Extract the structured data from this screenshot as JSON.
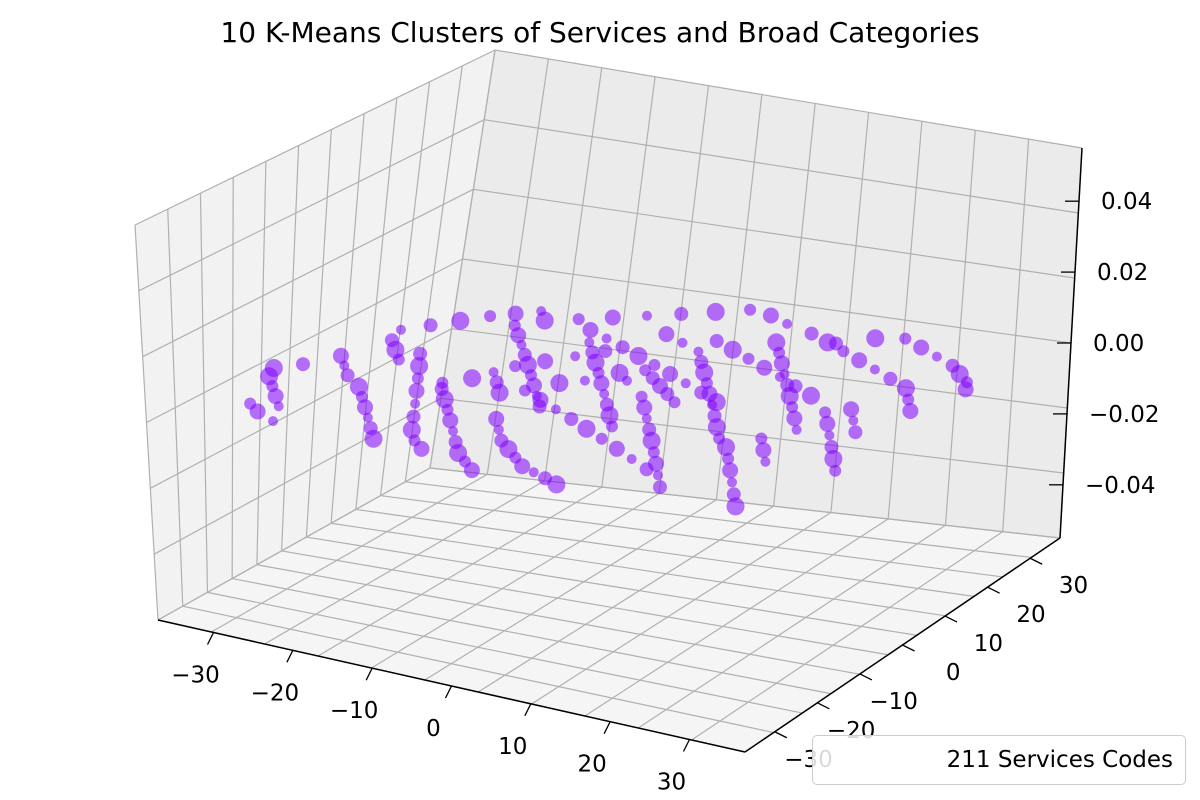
{
  "title": "10 K-Means Clusters of Services and Broad Categories",
  "legend": {
    "label": "211 Services Codes"
  },
  "chart_data": {
    "type": "scatter",
    "projection": "3d",
    "title": "10 K-Means Clusters of Services and Broad Categories",
    "x_ticks": [
      "−30",
      "−20",
      "−10",
      "0",
      "10",
      "20",
      "30"
    ],
    "y_ticks": [
      "−30",
      "−20",
      "−10",
      "0",
      "10",
      "20",
      "30"
    ],
    "z_ticks": [
      "−0.04",
      "−0.02",
      "0.00",
      "0.02",
      "0.04"
    ],
    "xlim": [
      -37,
      37
    ],
    "ylim": [
      -37,
      37
    ],
    "zlim": [
      -0.055,
      0.055
    ],
    "grid": true,
    "legend_position": "lower right",
    "series": [
      {
        "name": "211 Services Codes",
        "color": "#7f00ff",
        "z_value": 0.0,
        "points": [
          [
            -30,
            9
          ],
          [
            -28,
            12
          ],
          [
            -26,
            15
          ],
          [
            -24,
            18
          ],
          [
            -22,
            20
          ],
          [
            -20,
            22
          ],
          [
            -29,
            5
          ],
          [
            -27,
            2
          ],
          [
            -25,
            -1
          ],
          [
            -31,
            -3
          ],
          [
            -29,
            -6
          ],
          [
            -27,
            -9
          ],
          [
            -24,
            -12
          ],
          [
            -22,
            -15
          ],
          [
            -20,
            -18
          ],
          [
            -18,
            -21
          ],
          [
            -16,
            -24
          ],
          [
            -14,
            -27
          ],
          [
            -20,
            16
          ],
          [
            -18,
            13
          ],
          [
            -16,
            10
          ],
          [
            -14,
            7
          ],
          [
            -12,
            4
          ],
          [
            -10,
            1
          ],
          [
            -8,
            -2
          ],
          [
            -6,
            -5
          ],
          [
            -4,
            -8
          ],
          [
            -18,
            19
          ],
          [
            -15,
            21
          ],
          [
            -12,
            23
          ],
          [
            -9,
            25
          ],
          [
            -6,
            27
          ],
          [
            -3,
            29
          ],
          [
            0,
            31
          ],
          [
            3,
            30
          ],
          [
            6,
            28
          ],
          [
            -16,
            -8
          ],
          [
            -14,
            -11
          ],
          [
            -12,
            -14
          ],
          [
            -10,
            -17
          ],
          [
            -8,
            -20
          ],
          [
            -6,
            -23
          ],
          [
            -4,
            -26
          ],
          [
            -2,
            -28
          ],
          [
            0,
            -30
          ],
          [
            -10,
            14
          ],
          [
            -8,
            11
          ],
          [
            -6,
            8
          ],
          [
            -4,
            5
          ],
          [
            -2,
            2
          ],
          [
            0,
            -1
          ],
          [
            2,
            -4
          ],
          [
            4,
            -7
          ],
          [
            6,
            -10
          ],
          [
            -12,
            18
          ],
          [
            -9,
            16
          ],
          [
            -6,
            14
          ],
          [
            -3,
            12
          ],
          [
            0,
            10
          ],
          [
            3,
            8
          ],
          [
            6,
            6
          ],
          [
            9,
            4
          ],
          [
            12,
            2
          ],
          [
            -8,
            -4
          ],
          [
            -5,
            -6
          ],
          [
            -2,
            -8
          ],
          [
            1,
            -10
          ],
          [
            4,
            -12
          ],
          [
            7,
            -14
          ],
          [
            10,
            -16
          ],
          [
            13,
            -18
          ],
          [
            16,
            -20
          ],
          [
            8,
            22
          ],
          [
            10,
            19
          ],
          [
            12,
            16
          ],
          [
            14,
            13
          ],
          [
            16,
            10
          ],
          [
            18,
            7
          ],
          [
            20,
            4
          ],
          [
            22,
            1
          ],
          [
            24,
            -2
          ],
          [
            10,
            26
          ],
          [
            13,
            24
          ],
          [
            16,
            22
          ],
          [
            19,
            20
          ],
          [
            22,
            18
          ],
          [
            25,
            16
          ],
          [
            28,
            14
          ],
          [
            30,
            11
          ],
          [
            32,
            8
          ],
          [
            2,
            16
          ],
          [
            4,
            13
          ],
          [
            6,
            10
          ],
          [
            8,
            7
          ],
          [
            10,
            4
          ],
          [
            12,
            1
          ],
          [
            14,
            -2
          ],
          [
            16,
            -5
          ],
          [
            18,
            -8
          ],
          [
            -4,
            20
          ],
          [
            -1,
            18
          ],
          [
            2,
            20
          ],
          [
            5,
            18
          ],
          [
            8,
            16
          ],
          [
            11,
            14
          ],
          [
            14,
            12
          ],
          [
            17,
            10
          ],
          [
            20,
            8
          ],
          [
            4,
            0
          ],
          [
            6,
            -3
          ],
          [
            8,
            -6
          ],
          [
            10,
            -9
          ],
          [
            12,
            -12
          ],
          [
            14,
            -15
          ],
          [
            16,
            -18
          ],
          [
            18,
            -21
          ],
          [
            20,
            -24
          ],
          [
            20,
            -10
          ],
          [
            22,
            -13
          ],
          [
            24,
            -16
          ],
          [
            26,
            -19
          ],
          [
            28,
            -22
          ],
          [
            30,
            -25
          ],
          [
            22,
            -6
          ],
          [
            24,
            -9
          ],
          [
            26,
            -12
          ],
          [
            -24,
            2
          ],
          [
            -22,
            -2
          ],
          [
            -20,
            -6
          ],
          [
            -18,
            -10
          ],
          [
            -16,
            -14
          ],
          [
            -14,
            -18
          ],
          [
            -12,
            -22
          ],
          [
            -10,
            -25
          ],
          [
            -8,
            -27
          ],
          [
            0,
            4
          ],
          [
            2,
            6
          ],
          [
            -2,
            6
          ],
          [
            0,
            8
          ],
          [
            4,
            4
          ],
          [
            -4,
            2
          ],
          [
            6,
            2
          ],
          [
            -6,
            0
          ],
          [
            8,
            0
          ],
          [
            -6,
            -14
          ],
          [
            -4,
            -17
          ],
          [
            -2,
            -20
          ],
          [
            0,
            -22
          ],
          [
            2,
            -24
          ],
          [
            4,
            -26
          ],
          [
            6,
            -27
          ],
          [
            8,
            -28
          ],
          [
            10,
            -29
          ],
          [
            24,
            4
          ],
          [
            26,
            1
          ],
          [
            28,
            -2
          ],
          [
            30,
            -5
          ],
          [
            32,
            -8
          ],
          [
            34,
            -11
          ],
          [
            26,
            6
          ],
          [
            28,
            3
          ],
          [
            30,
            0
          ],
          [
            -34,
            -14
          ],
          [
            -32,
            -17
          ],
          [
            -30,
            -20
          ],
          [
            -28,
            -23
          ],
          [
            -33,
            -8
          ],
          [
            -35,
            -11
          ],
          [
            -31,
            -24
          ],
          [
            -29,
            -26
          ],
          [
            -26,
            -28
          ],
          [
            14,
            24
          ],
          [
            17,
            27
          ],
          [
            20,
            28
          ],
          [
            23,
            26
          ],
          [
            26,
            24
          ],
          [
            29,
            22
          ],
          [
            31,
            20
          ],
          [
            33,
            18
          ],
          [
            34,
            16
          ],
          [
            -14,
            0
          ],
          [
            -12,
            -3
          ],
          [
            -10,
            -6
          ],
          [
            -13,
            3
          ],
          [
            -11,
            6
          ],
          [
            -9,
            9
          ],
          [
            -7,
            12
          ],
          [
            -15,
            -3
          ],
          [
            -17,
            -6
          ]
        ]
      }
    ]
  }
}
